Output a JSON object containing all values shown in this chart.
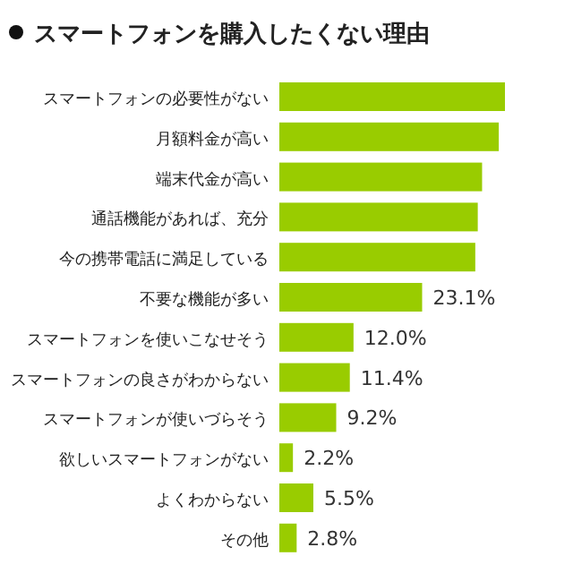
{
  "chart_data": {
    "type": "bar",
    "orientation": "horizontal",
    "relative": false,
    "title": "スマートフォンを購入したくない理由",
    "categories": [
      "スマートフォンの必要性がない",
      "月額料金が高い",
      "端末代金が高い",
      "通話機能があれば、充分",
      "今の携帯電話に満足している",
      "不要な機能が多い",
      "スマートフォンを使いこなせそう",
      "スマートフォンの良さがわからない",
      "スマートフォンが使いづらそう",
      "欲しいスマートフォンがない",
      "よくわからない",
      "その他"
    ],
    "values": [
      36.5,
      35.5,
      32.8,
      32.1,
      31.7,
      23.1,
      12.0,
      11.4,
      9.2,
      2.2,
      5.5,
      2.8
    ],
    "value_labels": [
      null,
      null,
      null,
      null,
      null,
      "23.1%",
      "12.0%",
      "11.4%",
      "9.2%",
      "2.2%",
      "5.5%",
      "2.8%"
    ],
    "color": "#99cc00"
  }
}
